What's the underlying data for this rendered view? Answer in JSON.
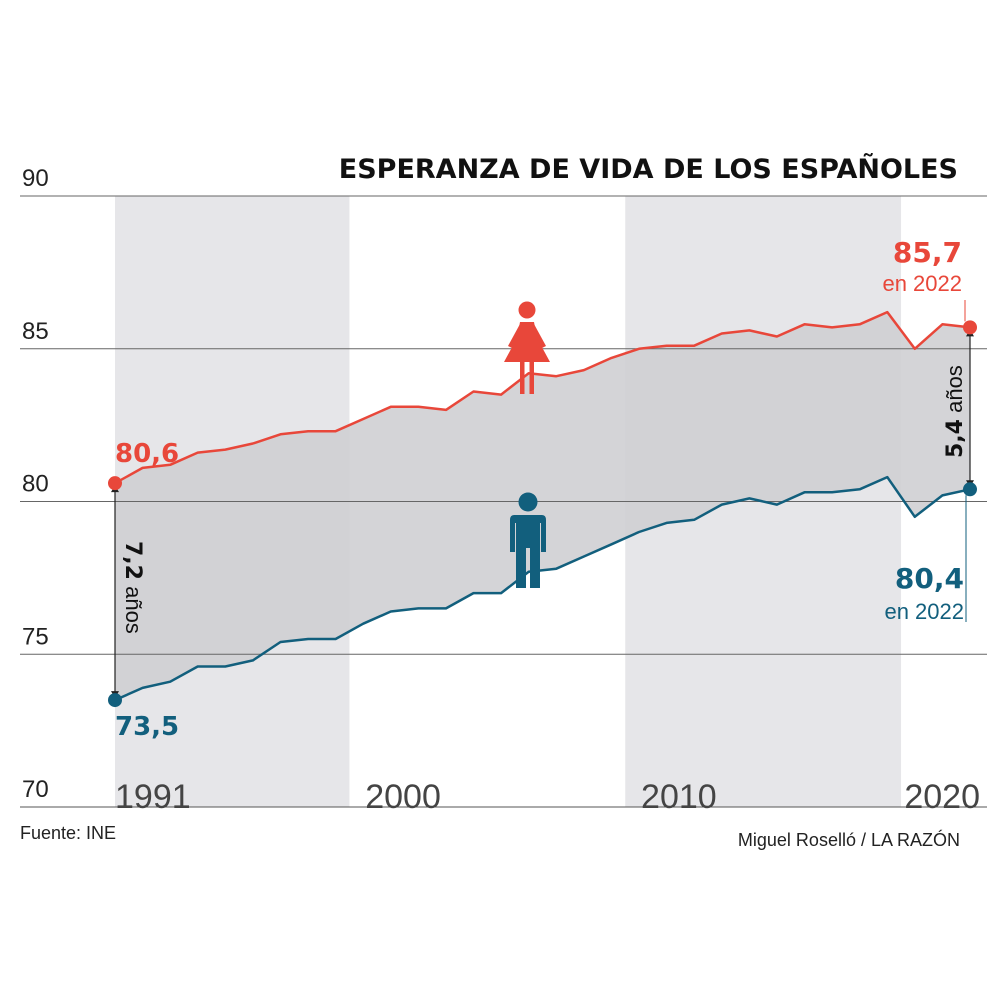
{
  "chart_data": {
    "type": "line",
    "title": "ESPERANZA DE VIDA DE LOS ESPAÑOLES",
    "x": [
      1991,
      1992,
      1993,
      1994,
      1995,
      1996,
      1997,
      1998,
      1999,
      2000,
      2001,
      2002,
      2003,
      2004,
      2005,
      2006,
      2007,
      2008,
      2009,
      2010,
      2011,
      2012,
      2013,
      2014,
      2015,
      2016,
      2017,
      2018,
      2019,
      2020,
      2021,
      2022
    ],
    "ylim": [
      70,
      90
    ],
    "yticks": [
      "70",
      "75",
      "80",
      "85",
      "90"
    ],
    "xticks": [
      "1991",
      "2000",
      "2010",
      "2020"
    ],
    "shaded_periods": [
      [
        1991,
        1999.5
      ],
      [
        2009.5,
        2019.5
      ]
    ],
    "series": [
      {
        "key": "mujeres",
        "color": "#e8473a",
        "values": [
          80.6,
          81.1,
          81.2,
          81.6,
          81.7,
          81.9,
          82.2,
          82.3,
          82.3,
          82.7,
          83.1,
          83.1,
          83.0,
          83.6,
          83.5,
          84.2,
          84.1,
          84.3,
          84.7,
          85.0,
          85.1,
          85.1,
          85.5,
          85.6,
          85.4,
          85.8,
          85.7,
          85.8,
          86.2,
          85.0,
          85.8,
          85.7
        ]
      },
      {
        "key": "hombres",
        "color": "#125f7d",
        "values": [
          73.5,
          73.9,
          74.1,
          74.6,
          74.6,
          74.8,
          75.4,
          75.5,
          75.5,
          76.0,
          76.4,
          76.5,
          76.5,
          77.0,
          77.0,
          77.7,
          77.8,
          78.2,
          78.6,
          79.0,
          79.3,
          79.4,
          79.9,
          80.1,
          79.9,
          80.3,
          80.3,
          80.4,
          80.8,
          79.5,
          80.2,
          80.4
        ]
      }
    ],
    "annotations": {
      "mujeres_start": "80,6",
      "hombres_start": "73,5",
      "mujeres_end": "85,7",
      "mujeres_end_sub": "en 2022",
      "hombres_end": "80,4",
      "hombres_end_sub": "en 2022",
      "gap_start_num": "7,2",
      "gap_start_unit": " años",
      "gap_end_num": "5,4",
      "gap_end_unit": " años"
    },
    "source": "Fuente: INE",
    "credit": "Miguel Roselló / LA RAZÓN"
  },
  "icons": [
    "woman-icon",
    "man-icon"
  ],
  "colors": {
    "mujeres": "#e8473a",
    "hombres": "#125f7d",
    "band": "#e6e6e9",
    "gap_fill": "#cfcfd3"
  }
}
